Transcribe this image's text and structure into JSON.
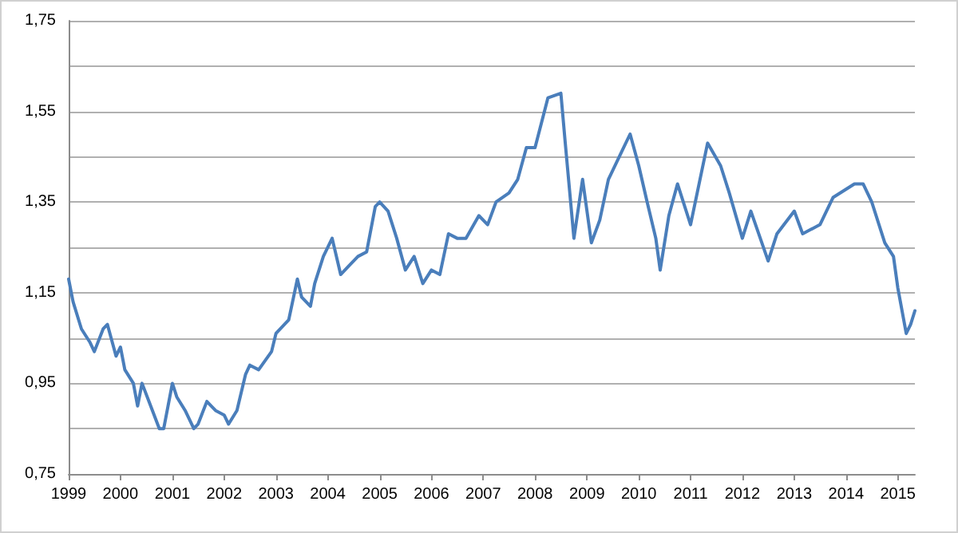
{
  "chart_data": {
    "type": "line",
    "x": [
      "1999-01",
      "1999-02",
      "1999-04",
      "1999-06",
      "1999-07",
      "1999-09",
      "1999-10",
      "1999-12",
      "2000-01",
      "2000-02",
      "2000-04",
      "2000-05",
      "2000-06",
      "2000-08",
      "2000-10",
      "2000-11",
      "2001-01",
      "2001-02",
      "2001-04",
      "2001-06",
      "2001-07",
      "2001-09",
      "2001-11",
      "2002-01",
      "2002-02",
      "2002-04",
      "2002-06",
      "2002-07",
      "2002-09",
      "2002-12",
      "2003-01",
      "2003-04",
      "2003-06",
      "2003-07",
      "2003-09",
      "2003-10",
      "2003-12",
      "2004-02",
      "2004-04",
      "2004-06",
      "2004-08",
      "2004-10",
      "2004-12",
      "2005-01",
      "2005-03",
      "2005-05",
      "2005-07",
      "2005-09",
      "2005-11",
      "2006-01",
      "2006-03",
      "2006-05",
      "2006-07",
      "2006-09",
      "2006-12",
      "2007-02",
      "2007-04",
      "2007-07",
      "2007-09",
      "2007-11",
      "2008-01",
      "2008-04",
      "2008-07",
      "2008-08",
      "2008-10",
      "2008-12",
      "2009-02",
      "2009-04",
      "2009-06",
      "2009-09",
      "2009-11",
      "2010-01",
      "2010-03",
      "2010-05",
      "2010-06",
      "2010-08",
      "2010-10",
      "2011-01",
      "2011-05",
      "2011-08",
      "2011-10",
      "2012-01",
      "2012-03",
      "2012-07",
      "2012-09",
      "2013-01",
      "2013-03",
      "2013-07",
      "2013-10",
      "2014-03",
      "2014-05",
      "2014-07",
      "2014-10",
      "2014-12",
      "2015-01",
      "2015-03",
      "2015-04",
      "2015-05"
    ],
    "series": [
      {
        "color": "#4a7ebb",
        "values": [
          1.18,
          1.13,
          1.07,
          1.04,
          1.02,
          1.07,
          1.08,
          1.01,
          1.03,
          0.98,
          0.95,
          0.9,
          0.95,
          0.9,
          0.85,
          0.85,
          0.95,
          0.92,
          0.89,
          0.85,
          0.86,
          0.91,
          0.89,
          0.88,
          0.86,
          0.89,
          0.97,
          0.99,
          0.98,
          1.02,
          1.06,
          1.09,
          1.18,
          1.14,
          1.12,
          1.17,
          1.23,
          1.27,
          1.19,
          1.21,
          1.23,
          1.24,
          1.34,
          1.35,
          1.33,
          1.27,
          1.2,
          1.23,
          1.17,
          1.2,
          1.19,
          1.28,
          1.27,
          1.27,
          1.32,
          1.3,
          1.35,
          1.37,
          1.4,
          1.47,
          1.47,
          1.58,
          1.59,
          1.48,
          1.27,
          1.4,
          1.26,
          1.31,
          1.4,
          1.46,
          1.5,
          1.43,
          1.35,
          1.27,
          1.2,
          1.32,
          1.39,
          1.3,
          1.48,
          1.43,
          1.37,
          1.27,
          1.33,
          1.22,
          1.28,
          1.33,
          1.28,
          1.3,
          1.36,
          1.39,
          1.39,
          1.35,
          1.26,
          1.23,
          1.16,
          1.06,
          1.08,
          1.11
        ]
      }
    ],
    "xlim": [
      "1999-01",
      "2015-05"
    ],
    "xticks": [
      "1999",
      "2000",
      "2001",
      "2002",
      "2003",
      "2004",
      "2005",
      "2006",
      "2007",
      "2008",
      "2009",
      "2010",
      "2011",
      "2012",
      "2013",
      "2014",
      "2015"
    ],
    "ylim": [
      0.75,
      1.75
    ],
    "yticks": [
      {
        "value": 0.75,
        "label": "0,75"
      },
      {
        "value": 0.85,
        "label": null
      },
      {
        "value": 0.95,
        "label": "0,95"
      },
      {
        "value": 1.05,
        "label": null
      },
      {
        "value": 1.15,
        "label": "1,15"
      },
      {
        "value": 1.25,
        "label": null
      },
      {
        "value": 1.35,
        "label": "1,35"
      },
      {
        "value": 1.45,
        "label": null
      },
      {
        "value": 1.55,
        "label": "1,55"
      },
      {
        "value": 1.65,
        "label": null
      },
      {
        "value": 1.75,
        "label": "1,75"
      }
    ],
    "grid": "y",
    "marker": "none",
    "line_style": "solid"
  }
}
